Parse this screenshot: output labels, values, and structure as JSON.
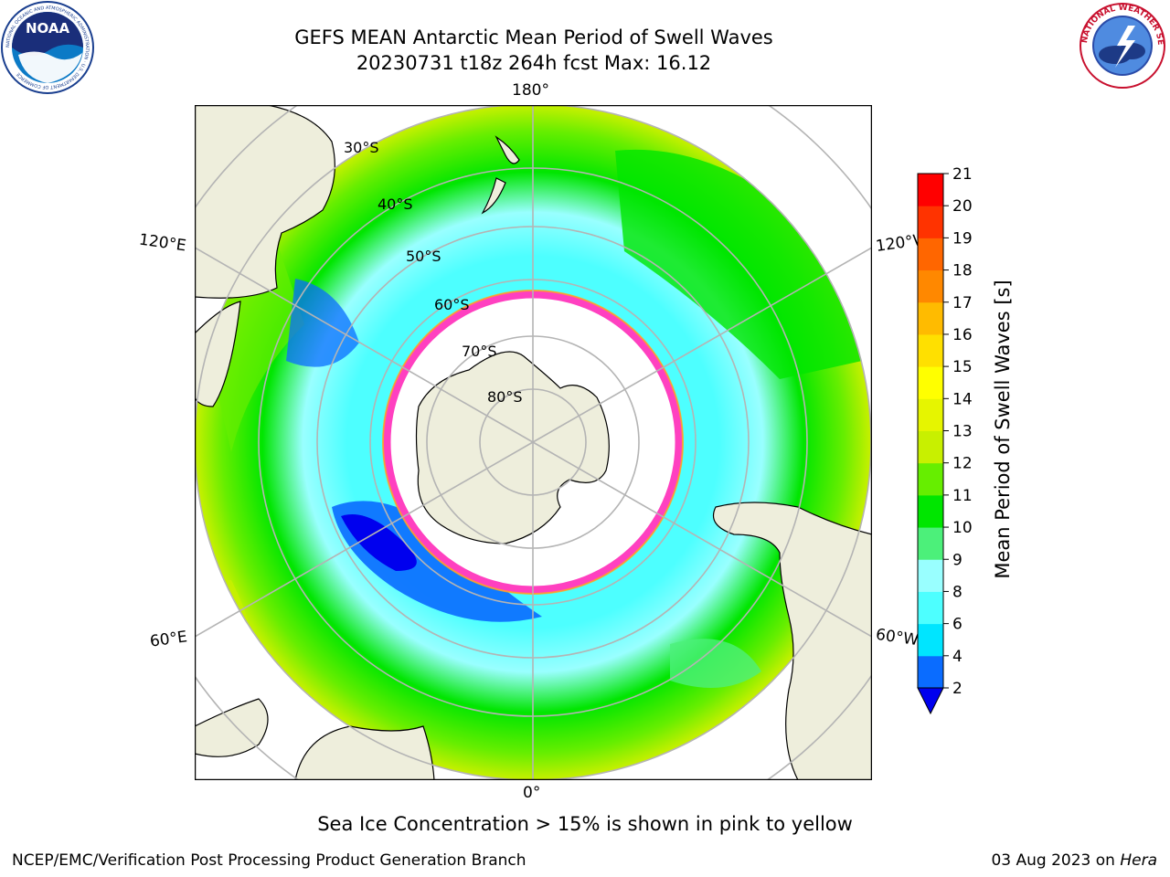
{
  "header": {
    "title_line1": "GEFS MEAN Antarctic Mean Period of Swell Waves",
    "title_line2": "20230731 t18z 264h fcst   Max: 16.12"
  },
  "logos": {
    "noaa_text": "NOAA",
    "noaa_ring_text": "NATIONAL OCEANIC AND ATMOSPHERIC ADMINISTRATION · U.S. DEPARTMENT OF COMMERCE",
    "nws_ring_text": "NATIONAL WEATHER SERVICE"
  },
  "map": {
    "projection": "south-polar-stereographic",
    "longitude_labels": {
      "top": "180°",
      "bottom": "0°",
      "upper_left": "120°E",
      "lower_left": "60°E",
      "upper_right": "120°W",
      "lower_right": "60°W"
    },
    "latitude_labels": [
      "30°S",
      "40°S",
      "50°S",
      "60°S",
      "70°S",
      "80°S"
    ],
    "colors": {
      "land": "#eeeedc",
      "coastline": "#000000",
      "grid": "#b4b4b4",
      "sea_ice_edge": "#ff40c0",
      "frame": "#000000"
    }
  },
  "colorbar": {
    "label": "Mean Period of Swell Waves [s]",
    "ticks": [
      "2",
      "4",
      "6",
      "8",
      "9",
      "10",
      "11",
      "12",
      "13",
      "14",
      "15",
      "16",
      "17",
      "18",
      "19",
      "20",
      "21"
    ],
    "colors": [
      "#0a6cff",
      "#00e5ff",
      "#4dffff",
      "#99ffff",
      "#4cf07a",
      "#00e600",
      "#66ee00",
      "#c8f000",
      "#e6f500",
      "#ffff00",
      "#ffe000",
      "#ffbb00",
      "#ff8800",
      "#ff6600",
      "#ff3300",
      "#ff0000"
    ],
    "extend_min_color": "#0000ee"
  },
  "footnote": "Sea Ice Concentration > 15% is shown in pink to yellow",
  "credits": {
    "left": "NCEP/EMC/Verification Post Processing Product Generation Branch",
    "right_prefix": "03 Aug 2023 on ",
    "right_host": "Hera"
  }
}
